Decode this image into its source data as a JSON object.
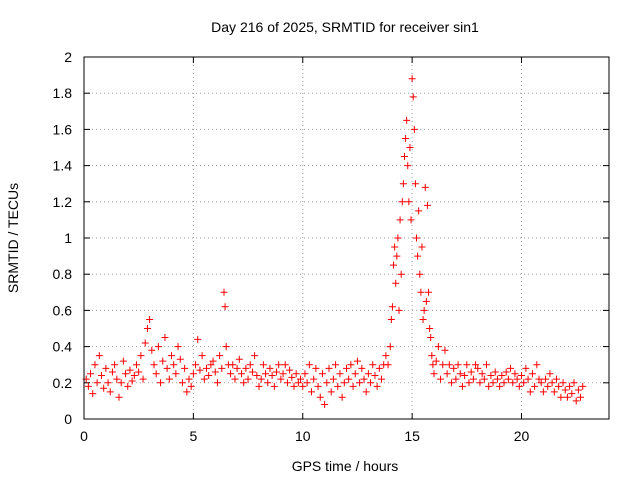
{
  "chart_data": {
    "type": "scatter",
    "title": "Day 216 of 2025, SRMTID for receiver sin1",
    "xlabel": "GPS time / hours",
    "ylabel": "SRMTID / TECUs",
    "xlim": [
      0,
      24
    ],
    "ylim": [
      0,
      2
    ],
    "x_ticks": [
      0,
      5,
      10,
      15,
      20
    ],
    "x_tick_labels": [
      "0",
      "5",
      "10",
      "15",
      "20"
    ],
    "y_ticks": [
      0,
      0.2,
      0.4,
      0.6,
      0.8,
      1,
      1.2,
      1.4,
      1.6,
      1.8,
      2
    ],
    "y_tick_labels": [
      "0",
      "0.2",
      "0.4",
      "0.6",
      "0.8",
      "1",
      "1.2",
      "1.4",
      "1.6",
      "1.8",
      "2"
    ],
    "grid": true,
    "marker": "+",
    "series": [
      {
        "name": "sin1",
        "color": "#ff0000",
        "points": [
          [
            0.1,
            0.22
          ],
          [
            0.2,
            0.18
          ],
          [
            0.3,
            0.25
          ],
          [
            0.4,
            0.14
          ],
          [
            0.5,
            0.3
          ],
          [
            0.6,
            0.2
          ],
          [
            0.7,
            0.35
          ],
          [
            0.8,
            0.24
          ],
          [
            0.9,
            0.17
          ],
          [
            1.0,
            0.28
          ],
          [
            1.1,
            0.2
          ],
          [
            1.2,
            0.15
          ],
          [
            1.3,
            0.26
          ],
          [
            1.4,
            0.3
          ],
          [
            1.5,
            0.22
          ],
          [
            1.6,
            0.12
          ],
          [
            1.7,
            0.2
          ],
          [
            1.8,
            0.32
          ],
          [
            1.9,
            0.25
          ],
          [
            2.0,
            0.18
          ],
          [
            2.1,
            0.27
          ],
          [
            2.2,
            0.21
          ],
          [
            2.3,
            0.24
          ],
          [
            2.4,
            0.3
          ],
          [
            2.5,
            0.26
          ],
          [
            2.6,
            0.35
          ],
          [
            2.7,
            0.22
          ],
          [
            2.8,
            0.42
          ],
          [
            2.9,
            0.5
          ],
          [
            3.0,
            0.55
          ],
          [
            3.1,
            0.38
          ],
          [
            3.2,
            0.3
          ],
          [
            3.3,
            0.25
          ],
          [
            3.4,
            0.4
          ],
          [
            3.5,
            0.2
          ],
          [
            3.6,
            0.32
          ],
          [
            3.7,
            0.45
          ],
          [
            3.8,
            0.28
          ],
          [
            3.9,
            0.22
          ],
          [
            4.0,
            0.35
          ],
          [
            4.1,
            0.3
          ],
          [
            4.2,
            0.25
          ],
          [
            4.3,
            0.4
          ],
          [
            4.4,
            0.33
          ],
          [
            4.5,
            0.2
          ],
          [
            4.6,
            0.28
          ],
          [
            4.7,
            0.15
          ],
          [
            4.8,
            0.22
          ],
          [
            4.9,
            0.18
          ],
          [
            5.0,
            0.25
          ],
          [
            5.1,
            0.3
          ],
          [
            5.2,
            0.44
          ],
          [
            5.3,
            0.27
          ],
          [
            5.4,
            0.35
          ],
          [
            5.5,
            0.22
          ],
          [
            5.6,
            0.28
          ],
          [
            5.7,
            0.24
          ],
          [
            5.8,
            0.3
          ],
          [
            5.9,
            0.32
          ],
          [
            6.0,
            0.26
          ],
          [
            6.1,
            0.2
          ],
          [
            6.2,
            0.35
          ],
          [
            6.3,
            0.28
          ],
          [
            6.4,
            0.7
          ],
          [
            6.45,
            0.62
          ],
          [
            6.5,
            0.4
          ],
          [
            6.6,
            0.3
          ],
          [
            6.7,
            0.25
          ],
          [
            6.8,
            0.3
          ],
          [
            6.9,
            0.22
          ],
          [
            7.0,
            0.28
          ],
          [
            7.1,
            0.33
          ],
          [
            7.2,
            0.25
          ],
          [
            7.3,
            0.2
          ],
          [
            7.4,
            0.28
          ],
          [
            7.5,
            0.22
          ],
          [
            7.6,
            0.3
          ],
          [
            7.7,
            0.26
          ],
          [
            7.8,
            0.35
          ],
          [
            7.9,
            0.24
          ],
          [
            8.0,
            0.18
          ],
          [
            8.1,
            0.22
          ],
          [
            8.2,
            0.3
          ],
          [
            8.3,
            0.25
          ],
          [
            8.4,
            0.2
          ],
          [
            8.5,
            0.28
          ],
          [
            8.6,
            0.24
          ],
          [
            8.7,
            0.18
          ],
          [
            8.8,
            0.26
          ],
          [
            8.9,
            0.3
          ],
          [
            9.0,
            0.22
          ],
          [
            9.1,
            0.25
          ],
          [
            9.2,
            0.3
          ],
          [
            9.3,
            0.2
          ],
          [
            9.4,
            0.27
          ],
          [
            9.5,
            0.23
          ],
          [
            9.6,
            0.18
          ],
          [
            9.7,
            0.25
          ],
          [
            9.8,
            0.2
          ],
          [
            9.9,
            0.22
          ],
          [
            10.0,
            0.18
          ],
          [
            10.1,
            0.25
          ],
          [
            10.2,
            0.2
          ],
          [
            10.3,
            0.3
          ],
          [
            10.4,
            0.15
          ],
          [
            10.5,
            0.22
          ],
          [
            10.6,
            0.28
          ],
          [
            10.7,
            0.18
          ],
          [
            10.8,
            0.12
          ],
          [
            10.9,
            0.25
          ],
          [
            11.0,
            0.08
          ],
          [
            11.1,
            0.2
          ],
          [
            11.2,
            0.28
          ],
          [
            11.3,
            0.15
          ],
          [
            11.4,
            0.22
          ],
          [
            11.5,
            0.3
          ],
          [
            11.6,
            0.18
          ],
          [
            11.7,
            0.25
          ],
          [
            11.8,
            0.12
          ],
          [
            11.9,
            0.2
          ],
          [
            12.0,
            0.28
          ],
          [
            12.1,
            0.22
          ],
          [
            12.2,
            0.3
          ],
          [
            12.3,
            0.18
          ],
          [
            12.4,
            0.25
          ],
          [
            12.5,
            0.32
          ],
          [
            12.6,
            0.2
          ],
          [
            12.7,
            0.28
          ],
          [
            12.8,
            0.22
          ],
          [
            12.9,
            0.15
          ],
          [
            13.0,
            0.25
          ],
          [
            13.1,
            0.2
          ],
          [
            13.2,
            0.3
          ],
          [
            13.3,
            0.24
          ],
          [
            13.4,
            0.18
          ],
          [
            13.5,
            0.28
          ],
          [
            13.6,
            0.22
          ],
          [
            13.7,
            0.3
          ],
          [
            13.8,
            0.35
          ],
          [
            13.9,
            0.3
          ],
          [
            14.0,
            0.4
          ],
          [
            14.05,
            0.55
          ],
          [
            14.1,
            0.62
          ],
          [
            14.15,
            0.85
          ],
          [
            14.2,
            0.95
          ],
          [
            14.25,
            0.75
          ],
          [
            14.3,
            0.9
          ],
          [
            14.35,
            1.0
          ],
          [
            14.4,
            0.6
          ],
          [
            14.45,
            1.1
          ],
          [
            14.5,
            0.8
          ],
          [
            14.55,
            1.2
          ],
          [
            14.6,
            1.3
          ],
          [
            14.65,
            1.45
          ],
          [
            14.7,
            1.55
          ],
          [
            14.75,
            1.65
          ],
          [
            14.8,
            1.4
          ],
          [
            14.85,
            1.2
          ],
          [
            14.9,
            1.5
          ],
          [
            14.95,
            1.1
          ],
          [
            15.0,
            1.88
          ],
          [
            15.05,
            1.78
          ],
          [
            15.1,
            1.6
          ],
          [
            15.15,
            1.3
          ],
          [
            15.2,
            1.0
          ],
          [
            15.25,
            0.9
          ],
          [
            15.3,
            1.15
          ],
          [
            15.35,
            0.8
          ],
          [
            15.4,
            0.7
          ],
          [
            15.45,
            0.95
          ],
          [
            15.5,
            0.55
          ],
          [
            15.55,
            0.6
          ],
          [
            15.6,
            1.28
          ],
          [
            15.65,
            0.65
          ],
          [
            15.7,
            1.18
          ],
          [
            15.75,
            0.7
          ],
          [
            15.8,
            0.5
          ],
          [
            15.85,
            0.45
          ],
          [
            15.9,
            0.35
          ],
          [
            15.95,
            0.3
          ],
          [
            16.0,
            0.25
          ],
          [
            16.1,
            0.32
          ],
          [
            16.2,
            0.4
          ],
          [
            16.3,
            0.22
          ],
          [
            16.4,
            0.3
          ],
          [
            16.5,
            0.38
          ],
          [
            16.6,
            0.25
          ],
          [
            16.7,
            0.3
          ],
          [
            16.8,
            0.2
          ],
          [
            16.9,
            0.28
          ],
          [
            17.0,
            0.22
          ],
          [
            17.1,
            0.3
          ],
          [
            17.2,
            0.25
          ],
          [
            17.3,
            0.18
          ],
          [
            17.4,
            0.24
          ],
          [
            17.5,
            0.3
          ],
          [
            17.6,
            0.2
          ],
          [
            17.7,
            0.26
          ],
          [
            17.8,
            0.22
          ],
          [
            17.9,
            0.3
          ],
          [
            18.0,
            0.28
          ],
          [
            18.1,
            0.2
          ],
          [
            18.2,
            0.25
          ],
          [
            18.3,
            0.22
          ],
          [
            18.4,
            0.3
          ],
          [
            18.5,
            0.18
          ],
          [
            18.6,
            0.24
          ],
          [
            18.7,
            0.2
          ],
          [
            18.8,
            0.26
          ],
          [
            18.9,
            0.22
          ],
          [
            19.0,
            0.18
          ],
          [
            19.1,
            0.24
          ],
          [
            19.2,
            0.2
          ],
          [
            19.3,
            0.26
          ],
          [
            19.4,
            0.22
          ],
          [
            19.5,
            0.28
          ],
          [
            19.6,
            0.2
          ],
          [
            19.7,
            0.25
          ],
          [
            19.8,
            0.22
          ],
          [
            19.9,
            0.18
          ],
          [
            20.0,
            0.24
          ],
          [
            20.1,
            0.2
          ],
          [
            20.2,
            0.28
          ],
          [
            20.3,
            0.22
          ],
          [
            20.4,
            0.15
          ],
          [
            20.5,
            0.25
          ],
          [
            20.6,
            0.18
          ],
          [
            20.7,
            0.3
          ],
          [
            20.8,
            0.22
          ],
          [
            20.9,
            0.2
          ],
          [
            21.0,
            0.15
          ],
          [
            21.1,
            0.22
          ],
          [
            21.2,
            0.18
          ],
          [
            21.3,
            0.25
          ],
          [
            21.4,
            0.2
          ],
          [
            21.5,
            0.15
          ],
          [
            21.6,
            0.22
          ],
          [
            21.7,
            0.18
          ],
          [
            21.8,
            0.12
          ],
          [
            21.9,
            0.2
          ],
          [
            22.0,
            0.16
          ],
          [
            22.1,
            0.12
          ],
          [
            22.2,
            0.18
          ],
          [
            22.3,
            0.14
          ],
          [
            22.4,
            0.2
          ],
          [
            22.5,
            0.1
          ],
          [
            22.6,
            0.16
          ],
          [
            22.7,
            0.12
          ],
          [
            22.8,
            0.18
          ]
        ]
      }
    ]
  }
}
